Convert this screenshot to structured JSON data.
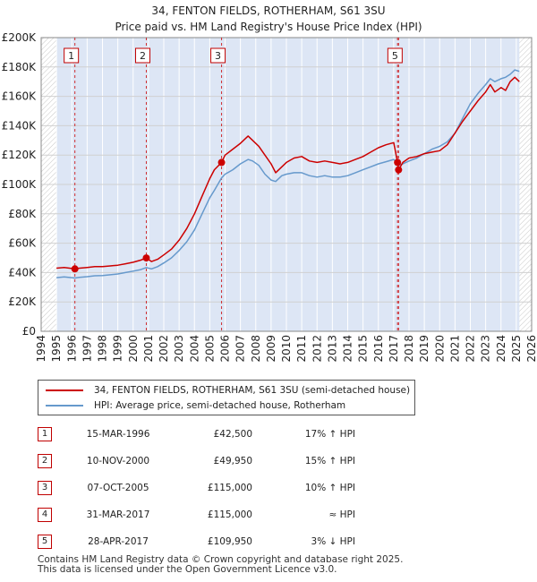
{
  "header": {
    "title": "34, FENTON FIELDS, ROTHERHAM, S61 3SU",
    "subtitle": "Price paid vs. HM Land Registry's House Price Index (HPI)"
  },
  "colors": {
    "price_line": "#cc0000",
    "hpi_line": "#6699cc",
    "shade": "#dde6f5",
    "marker": "#cc0000"
  },
  "chart_data": {
    "type": "line",
    "xlim": [
      1994,
      2026
    ],
    "ylim": [
      0,
      200000
    ],
    "x_ticks": [
      1994,
      1995,
      1996,
      1997,
      1998,
      1999,
      2000,
      2001,
      2002,
      2003,
      2004,
      2005,
      2006,
      2007,
      2008,
      2009,
      2010,
      2011,
      2012,
      2013,
      2014,
      2015,
      2016,
      2017,
      2018,
      2019,
      2020,
      2021,
      2022,
      2023,
      2024,
      2025,
      2026
    ],
    "y_ticks": [
      0,
      20000,
      40000,
      60000,
      80000,
      100000,
      120000,
      140000,
      160000,
      180000,
      200000
    ],
    "y_tick_labels": [
      "£0",
      "£20K",
      "£40K",
      "£60K",
      "£80K",
      "£100K",
      "£120K",
      "£140K",
      "£160K",
      "£180K",
      "£200K"
    ],
    "data_range": [
      1995.0,
      2025.2
    ],
    "series": [
      {
        "name": "34, FENTON FIELDS, ROTHERHAM, S61 3SU (semi-detached house)",
        "x": [
          1995.0,
          1995.5,
          1996.2,
          1996.5,
          1997,
          1997.5,
          1998,
          1998.5,
          1999,
          1999.5,
          2000,
          2000.5,
          2000.86,
          2001.2,
          2001.6,
          2002,
          2002.5,
          2003,
          2003.5,
          2004,
          2004.5,
          2005,
          2005.3,
          2005.77,
          2006.0,
          2006.5,
          2007,
          2007.5,
          2007.8,
          2008.2,
          2008.6,
          2009,
          2009.3,
          2009.7,
          2010,
          2010.5,
          2011,
          2011.5,
          2012,
          2012.5,
          2013,
          2013.5,
          2014,
          2014.5,
          2015,
          2015.5,
          2016,
          2016.5,
          2017.0,
          2017.25,
          2017.32,
          2017.6,
          2018,
          2018.5,
          2019,
          2019.5,
          2020,
          2020.5,
          2021,
          2021.5,
          2022,
          2022.5,
          2023,
          2023.3,
          2023.6,
          2024,
          2024.3,
          2024.6,
          2024.9,
          2025.2
        ],
        "values": [
          43000,
          43500,
          42500,
          43000,
          43500,
          44000,
          44000,
          44500,
          45000,
          46000,
          47000,
          48500,
          49950,
          47500,
          49000,
          52000,
          56000,
          62000,
          70000,
          80000,
          92000,
          104000,
          110000,
          115000,
          120000,
          124000,
          128000,
          133000,
          130000,
          126000,
          120000,
          114000,
          108000,
          112000,
          115000,
          118000,
          119000,
          116000,
          115000,
          116000,
          115000,
          114000,
          115000,
          117000,
          119000,
          122000,
          125000,
          127000,
          128500,
          115000,
          109950,
          115000,
          118000,
          119000,
          121000,
          122000,
          123000,
          127000,
          135000,
          143000,
          150000,
          157000,
          163000,
          168000,
          163000,
          166000,
          164000,
          170000,
          173000,
          170000
        ]
      },
      {
        "name": "HPI: Average price, semi-detached house, Rotherham",
        "x": [
          1995.0,
          1995.5,
          1996.2,
          1996.5,
          1997,
          1997.5,
          1998,
          1998.5,
          1999,
          1999.5,
          2000,
          2000.5,
          2000.86,
          2001.2,
          2001.6,
          2002,
          2002.5,
          2003,
          2003.5,
          2004,
          2004.5,
          2005,
          2005.3,
          2005.77,
          2006.0,
          2006.5,
          2007,
          2007.5,
          2007.8,
          2008.2,
          2008.6,
          2009,
          2009.3,
          2009.7,
          2010,
          2010.5,
          2011,
          2011.5,
          2012,
          2012.5,
          2013,
          2013.5,
          2014,
          2014.5,
          2015,
          2015.5,
          2016,
          2016.5,
          2017.0,
          2017.25,
          2017.32,
          2017.6,
          2018,
          2018.5,
          2019,
          2019.5,
          2020,
          2020.5,
          2021,
          2021.5,
          2022,
          2022.5,
          2023,
          2023.3,
          2023.6,
          2024,
          2024.3,
          2024.6,
          2024.9,
          2025.2
        ],
        "values": [
          36500,
          37000,
          36300,
          36700,
          37200,
          37800,
          38000,
          38500,
          39000,
          40000,
          41000,
          42000,
          43400,
          42500,
          44000,
          46500,
          50000,
          55000,
          61000,
          69000,
          80000,
          91000,
          96000,
          104500,
          107000,
          110000,
          114000,
          117000,
          116000,
          113000,
          107000,
          103000,
          102000,
          106000,
          107000,
          108000,
          108000,
          106000,
          105000,
          106000,
          105000,
          105000,
          106000,
          108000,
          110000,
          112000,
          114000,
          115500,
          117000,
          114000,
          113000,
          114000,
          116000,
          118000,
          121000,
          124000,
          126000,
          129000,
          135000,
          145000,
          155000,
          162000,
          168000,
          172000,
          170000,
          172000,
          173000,
          175000,
          178000,
          177000
        ]
      }
    ],
    "sales": [
      {
        "label": "1",
        "year": 1996.2,
        "price": 42500
      },
      {
        "label": "2",
        "year": 2000.86,
        "price": 49950
      },
      {
        "label": "3",
        "year": 2005.77,
        "price": 115000
      },
      {
        "label": "4",
        "year": 2017.25,
        "price": 115000
      },
      {
        "label": "5",
        "year": 2017.32,
        "price": 109950
      }
    ],
    "box_labels": [
      {
        "label": "1",
        "year": 1996.2
      },
      {
        "label": "2",
        "year": 2000.86
      },
      {
        "label": "3",
        "year": 2005.77
      },
      {
        "label": "5",
        "year": 2017.32
      }
    ]
  },
  "legend": {
    "price_label": "34, FENTON FIELDS, ROTHERHAM, S61 3SU (semi-detached house)",
    "hpi_label": "HPI: Average price, semi-detached house, Rotherham"
  },
  "sales_table": [
    {
      "num": "1",
      "date": "15-MAR-1996",
      "price": "£42,500",
      "rel": "17% ↑ HPI"
    },
    {
      "num": "2",
      "date": "10-NOV-2000",
      "price": "£49,950",
      "rel": "15% ↑ HPI"
    },
    {
      "num": "3",
      "date": "07-OCT-2005",
      "price": "£115,000",
      "rel": "10% ↑ HPI"
    },
    {
      "num": "4",
      "date": "31-MAR-2017",
      "price": "£115,000",
      "rel": "≈ HPI"
    },
    {
      "num": "5",
      "date": "28-APR-2017",
      "price": "£109,950",
      "rel": "3% ↓ HPI"
    }
  ],
  "footer": {
    "line1": "Contains HM Land Registry data © Crown copyright and database right 2025.",
    "line2": "This data is licensed under the Open Government Licence v3.0."
  }
}
